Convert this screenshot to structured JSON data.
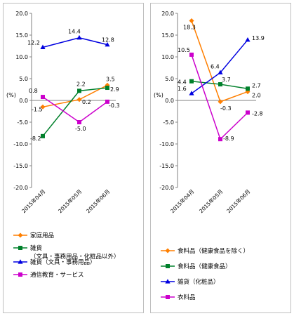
{
  "chart_data": [
    {
      "type": "line",
      "ylabel": "(%)",
      "ylim": [
        -20,
        20
      ],
      "ytick_step": 5,
      "yticks": [
        "20.0",
        "15.0",
        "10.0",
        "5.0",
        "0.0",
        "-5.0",
        "-10.0",
        "-15.0",
        "-20.0"
      ],
      "categories": [
        "2015年04月",
        "2015年05月",
        "2015年06月"
      ],
      "legend_position": "bottom",
      "series": [
        {
          "name": "家庭用品",
          "color": "#ff7f00",
          "marker": "diamond",
          "values": [
            -1.5,
            0.2,
            3.5
          ],
          "labels": [
            "-1.5",
            "0.2",
            "3.5"
          ]
        },
        {
          "name": "雑貨\n（文具・事務用品・化粧品以外）",
          "color": "#00802b",
          "marker": "square",
          "values": [
            -8.2,
            2.2,
            2.9
          ],
          "labels": [
            "-8.2",
            "2.2",
            "2.9"
          ]
        },
        {
          "name": "雑貨（文具・事務用品）",
          "color": "#0000e0",
          "marker": "triangle",
          "values": [
            12.2,
            14.4,
            12.8
          ],
          "labels": [
            "12.2",
            "14.4",
            "12.8"
          ]
        },
        {
          "name": "通信教育・サービス",
          "color": "#cc00cc",
          "marker": "square",
          "values": [
            0.8,
            -5.0,
            -0.3
          ],
          "labels": [
            "0.8",
            "-5.0",
            "-0.3"
          ]
        }
      ]
    },
    {
      "type": "line",
      "ylabel": "(%)",
      "ylim": [
        -20,
        20
      ],
      "ytick_step": 5,
      "yticks": [
        "20.0",
        "15.0",
        "10.0",
        "5.0",
        "0.0",
        "-5.0",
        "-10.0",
        "-15.0",
        "-20.0"
      ],
      "categories": [
        "2015年04月",
        "2015年05月",
        "2015年06月"
      ],
      "legend_position": "bottom",
      "series": [
        {
          "name": "食料品（健康食品を除く）",
          "color": "#ff7f00",
          "marker": "diamond",
          "values": [
            18.3,
            -0.3,
            2.0
          ],
          "labels": [
            "18.3",
            "-0.3",
            "2.0"
          ]
        },
        {
          "name": "食料品（健康食品）",
          "color": "#00802b",
          "marker": "square",
          "values": [
            4.4,
            3.7,
            2.7
          ],
          "labels": [
            "4.4",
            "3.7",
            "2.7"
          ]
        },
        {
          "name": "雑貨（化粧品）",
          "color": "#0000e0",
          "marker": "triangle",
          "values": [
            1.6,
            6.4,
            13.9
          ],
          "labels": [
            "1.6",
            "6.4",
            "13.9"
          ]
        },
        {
          "name": "衣料品",
          "color": "#cc00cc",
          "marker": "square",
          "values": [
            10.5,
            -8.9,
            -2.8
          ],
          "labels": [
            "10.5",
            "-8.9",
            "-2.8"
          ]
        }
      ]
    }
  ]
}
